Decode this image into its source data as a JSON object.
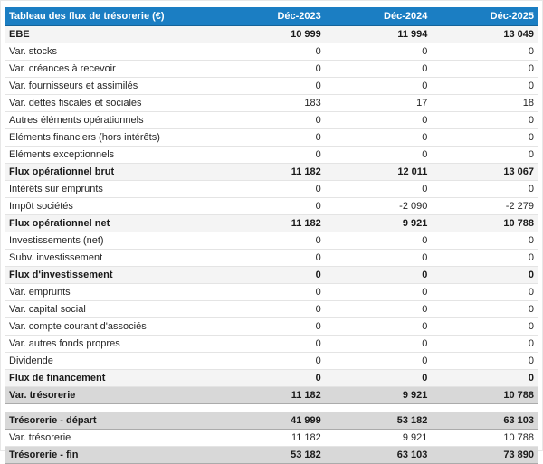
{
  "table": {
    "title": "Tableau des flux de trésorerie (€)",
    "columns": [
      "Déc-2023",
      "Déc-2024",
      "Déc-2025"
    ],
    "accent_color": "#1b7ec3",
    "rows": [
      {
        "style": "subtotal",
        "label": "EBE",
        "values": [
          "10 999",
          "11 994",
          "13 049"
        ]
      },
      {
        "style": "normal",
        "label": "Var. stocks",
        "values": [
          "0",
          "0",
          "0"
        ]
      },
      {
        "style": "normal",
        "label": "Var. créances à recevoir",
        "values": [
          "0",
          "0",
          "0"
        ]
      },
      {
        "style": "normal",
        "label": "Var. fournisseurs et assimilés",
        "values": [
          "0",
          "0",
          "0"
        ]
      },
      {
        "style": "normal",
        "label": "Var. dettes fiscales et sociales",
        "values": [
          "183",
          "17",
          "18"
        ]
      },
      {
        "style": "normal",
        "label": "Autres éléments opérationnels",
        "values": [
          "0",
          "0",
          "0"
        ]
      },
      {
        "style": "normal",
        "label": "Eléments financiers (hors intérêts)",
        "values": [
          "0",
          "0",
          "0"
        ]
      },
      {
        "style": "normal",
        "label": "Eléments exceptionnels",
        "values": [
          "0",
          "0",
          "0"
        ]
      },
      {
        "style": "subtotal",
        "label": "Flux opérationnel brut",
        "values": [
          "11 182",
          "12 011",
          "13 067"
        ]
      },
      {
        "style": "normal",
        "label": "Intérêts sur emprunts",
        "values": [
          "0",
          "0",
          "0"
        ]
      },
      {
        "style": "normal",
        "label": "Impôt sociétés",
        "values": [
          "0",
          "-2 090",
          "-2 279"
        ]
      },
      {
        "style": "subtotal",
        "label": "Flux opérationnel net",
        "values": [
          "11 182",
          "9 921",
          "10 788"
        ]
      },
      {
        "style": "normal",
        "label": "Investissements (net)",
        "values": [
          "0",
          "0",
          "0"
        ]
      },
      {
        "style": "normal",
        "label": "Subv. investissement",
        "values": [
          "0",
          "0",
          "0"
        ]
      },
      {
        "style": "subtotal",
        "label": "Flux d'investissement",
        "values": [
          "0",
          "0",
          "0"
        ]
      },
      {
        "style": "normal",
        "label": "Var. emprunts",
        "values": [
          "0",
          "0",
          "0"
        ]
      },
      {
        "style": "normal",
        "label": "Var. capital social",
        "values": [
          "0",
          "0",
          "0"
        ]
      },
      {
        "style": "normal",
        "label": "Var. compte courant d'associés",
        "values": [
          "0",
          "0",
          "0"
        ]
      },
      {
        "style": "normal",
        "label": "Var. autres fonds propres",
        "values": [
          "0",
          "0",
          "0"
        ]
      },
      {
        "style": "normal",
        "label": "Dividende",
        "values": [
          "0",
          "0",
          "0"
        ]
      },
      {
        "style": "subtotal",
        "label": "Flux de financement",
        "values": [
          "0",
          "0",
          "0"
        ]
      },
      {
        "style": "total",
        "label": "Var. trésorerie",
        "values": [
          "11 182",
          "9 921",
          "10 788"
        ]
      },
      {
        "style": "spacer",
        "label": "",
        "values": [
          "",
          "",
          ""
        ]
      },
      {
        "style": "total",
        "label": "Trésorerie - départ",
        "values": [
          "41 999",
          "53 182",
          "63 103"
        ]
      },
      {
        "style": "normal",
        "label": "Var. trésorerie",
        "values": [
          "11 182",
          "9 921",
          "10 788"
        ]
      },
      {
        "style": "total",
        "label": "Trésorerie - fin",
        "values": [
          "53 182",
          "63 103",
          "73 890"
        ]
      }
    ]
  }
}
